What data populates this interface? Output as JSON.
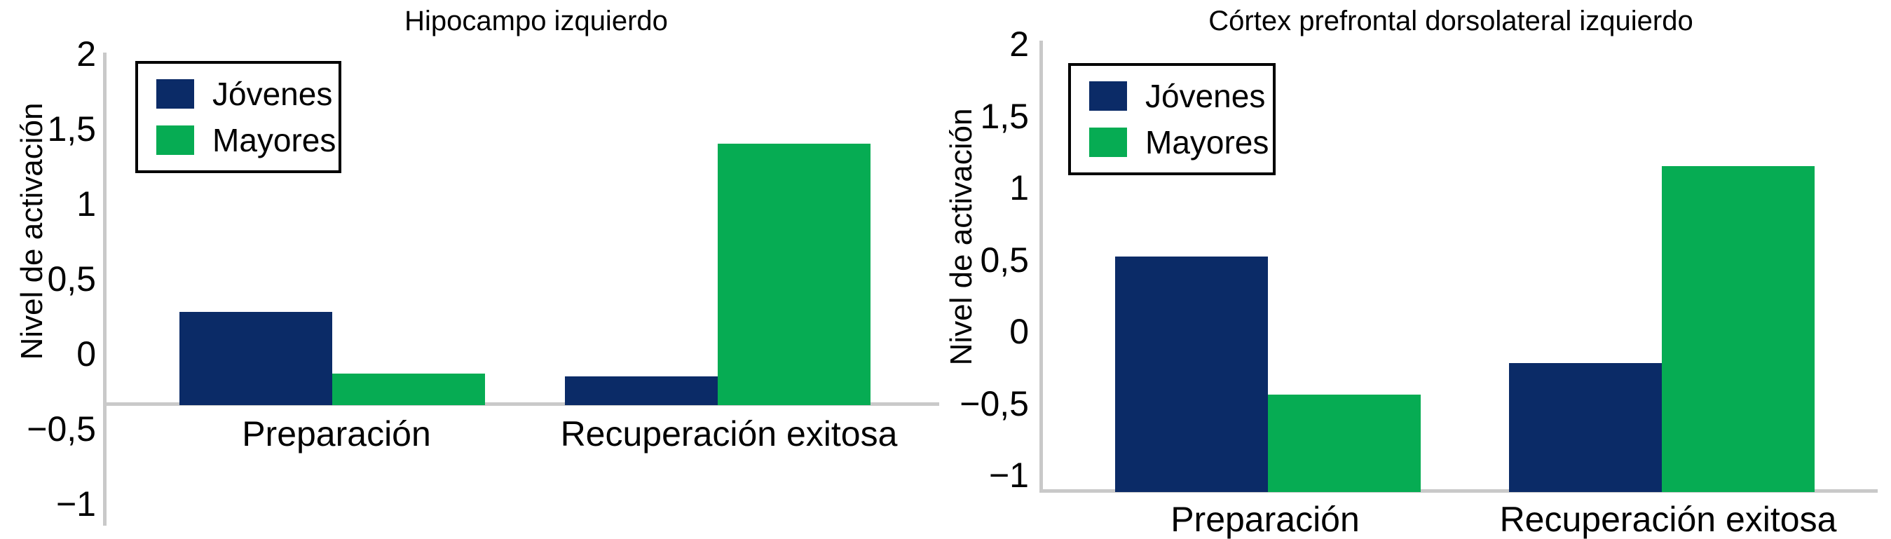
{
  "figure": {
    "background_color": "#ffffff",
    "axis_line_color": "#c9c9c9",
    "text_color": "#000000"
  },
  "chart_data": [
    {
      "type": "bar",
      "title": "Hipocampo izquierdo",
      "ylabel": "Nivel de activación",
      "xlabel": "",
      "categories": [
        "Preparación",
        "Recuperación exitosa"
      ],
      "series": [
        {
          "name": "Jóvenes",
          "color": "#0b2b67",
          "values": [
            0.28,
            -0.15
          ]
        },
        {
          "name": "Mayores",
          "color": "#06ac53",
          "values": [
            -0.13,
            1.4
          ]
        }
      ],
      "ylim": [
        -1.15,
        2
      ],
      "yticks": [
        {
          "value": 2,
          "label": "2"
        },
        {
          "value": 1.5,
          "label": "1,5"
        },
        {
          "value": 1,
          "label": "1"
        },
        {
          "value": 0.5,
          "label": "0,5"
        },
        {
          "value": 0,
          "label": "0"
        },
        {
          "value": -0.5,
          "label": "−0,5"
        },
        {
          "value": -1,
          "label": "−1"
        }
      ],
      "bar_baseline": -0.33,
      "legend": {
        "entries": [
          "Jóvenes",
          "Mayores"
        ],
        "position": "top-left"
      },
      "grid": false,
      "decimal_separator": ","
    },
    {
      "type": "bar",
      "title": "Córtex prefrontal dorsolateral izquierdo",
      "ylabel": "Nivel de activación",
      "xlabel": "",
      "categories": [
        "Preparación",
        "Recuperación exitosa"
      ],
      "series": [
        {
          "name": "Jóvenes",
          "color": "#0b2b67",
          "values": [
            0.52,
            -0.22
          ]
        },
        {
          "name": "Mayores",
          "color": "#06ac53",
          "values": [
            -0.44,
            1.15
          ]
        }
      ],
      "ylim": [
        -1.1,
        2
      ],
      "yticks": [
        {
          "value": 2,
          "label": "2"
        },
        {
          "value": 1.5,
          "label": "1,5"
        },
        {
          "value": 1,
          "label": "1"
        },
        {
          "value": 0.5,
          "label": "0,5"
        },
        {
          "value": 0,
          "label": "0"
        },
        {
          "value": -0.5,
          "label": "−0,5"
        },
        {
          "value": -1,
          "label": "−1"
        }
      ],
      "bar_baseline": -1.1,
      "legend": {
        "entries": [
          "Jóvenes",
          "Mayores"
        ],
        "position": "top-left"
      },
      "grid": false,
      "decimal_separator": ","
    }
  ]
}
